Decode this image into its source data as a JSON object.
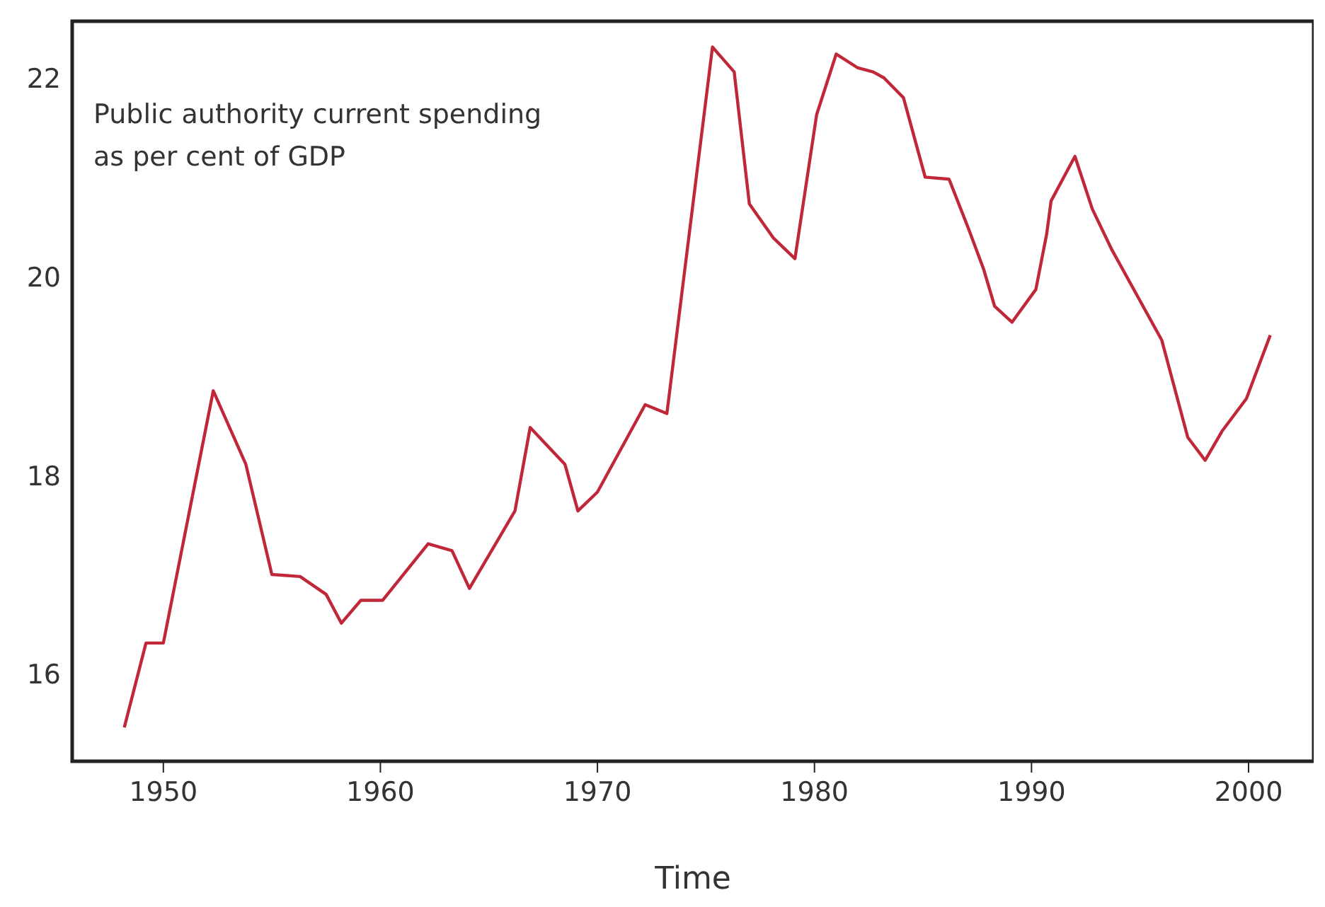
{
  "chart_data": {
    "type": "line",
    "xlabel": "Time",
    "annotations": [
      "Public authority current spending as per cent of GDP"
    ],
    "x": [
      1948.2,
      1949.2,
      1950,
      1952.3,
      1953.8,
      1955,
      1956.3,
      1957.5,
      1958.2,
      1959.1,
      1960.1,
      1962.2,
      1963.3,
      1964.1,
      1966.2,
      1966.9,
      1968.5,
      1969.1,
      1970,
      1972.2,
      1973.2,
      1975.3,
      1976.3,
      1977,
      1978.1,
      1979.1,
      1980.1,
      1981,
      1982,
      1982.7,
      1983.2,
      1984.1,
      1985.1,
      1986.2,
      1987.1,
      1987.8,
      1988.3,
      1989.1,
      1990.2,
      1990.7,
      1990.9,
      1992,
      1992.8,
      1993.7,
      1996,
      1997.2,
      1998,
      1998.8,
      1999.9,
      2001
    ],
    "series": [
      {
        "color": "#c0283a",
        "values": [
          15.46,
          16.31,
          16.31,
          18.85,
          18.11,
          17.0,
          16.98,
          16.8,
          16.51,
          16.74,
          16.74,
          17.31,
          17.24,
          16.86,
          17.64,
          18.48,
          18.11,
          17.64,
          17.83,
          18.71,
          18.62,
          22.31,
          22.06,
          20.73,
          20.39,
          20.18,
          21.63,
          22.24,
          22.1,
          22.06,
          22.0,
          21.8,
          21.0,
          20.98,
          20.48,
          20.07,
          19.7,
          19.54,
          19.87,
          20.43,
          20.76,
          21.21,
          20.68,
          20.27,
          19.36,
          18.38,
          18.15,
          18.45,
          18.77,
          19.41
        ]
      }
    ],
    "xlim": [
      1945.8,
      2003
    ],
    "xticks": [
      1950,
      1960,
      1970,
      1980,
      1990,
      2000
    ],
    "ylim": [
      15.12,
      22.57
    ],
    "yticks": [
      16,
      18,
      20,
      22
    ],
    "grid": false,
    "line_style": "solid",
    "marker": "none"
  }
}
